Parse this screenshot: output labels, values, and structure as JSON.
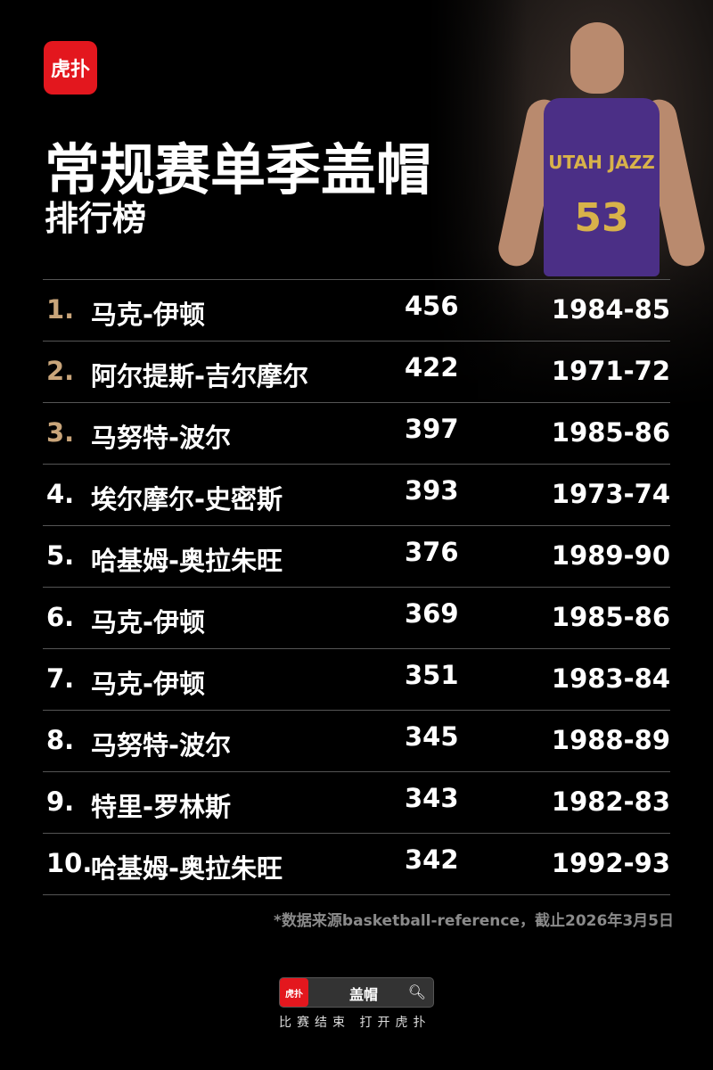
{
  "brand": {
    "logo_text": "虎扑",
    "accent": "#e3171e"
  },
  "photo": {
    "jersey_team": "UTAH JAZZ",
    "jersey_number": "53"
  },
  "header": {
    "title": "常规赛单季盖帽",
    "subtitle": "排行榜"
  },
  "colors": {
    "top3_rank": "#c9a57a",
    "divider": "#555555"
  },
  "rows": [
    {
      "rank": "1.",
      "name": "马克-伊顿",
      "blocks": "456",
      "season": "1984-85"
    },
    {
      "rank": "2.",
      "name": "阿尔提斯-吉尔摩尔",
      "blocks": "422",
      "season": "1971-72"
    },
    {
      "rank": "3.",
      "name": "马努特-波尔",
      "blocks": "397",
      "season": "1985-86"
    },
    {
      "rank": "4.",
      "name": "埃尔摩尔-史密斯",
      "blocks": "393",
      "season": "1973-74"
    },
    {
      "rank": "5.",
      "name": "哈基姆-奥拉朱旺",
      "blocks": "376",
      "season": "1989-90"
    },
    {
      "rank": "6.",
      "name": "马克-伊顿",
      "blocks": "369",
      "season": "1985-86"
    },
    {
      "rank": "7.",
      "name": "马克-伊顿",
      "blocks": "351",
      "season": "1983-84"
    },
    {
      "rank": "8.",
      "name": "马努特-波尔",
      "blocks": "345",
      "season": "1988-89"
    },
    {
      "rank": "9.",
      "name": "特里-罗林斯",
      "blocks": "343",
      "season": "1982-83"
    },
    {
      "rank": "10.",
      "name": "哈基姆-奥拉朱旺",
      "blocks": "342",
      "season": "1992-93"
    }
  ],
  "note": "*数据来源basketball-reference，截止2026年3月5日",
  "footer": {
    "search_logo": "虎扑",
    "search_query": "盖帽",
    "search_icon": "search-icon",
    "caption": "比赛结束 打开虎扑"
  }
}
